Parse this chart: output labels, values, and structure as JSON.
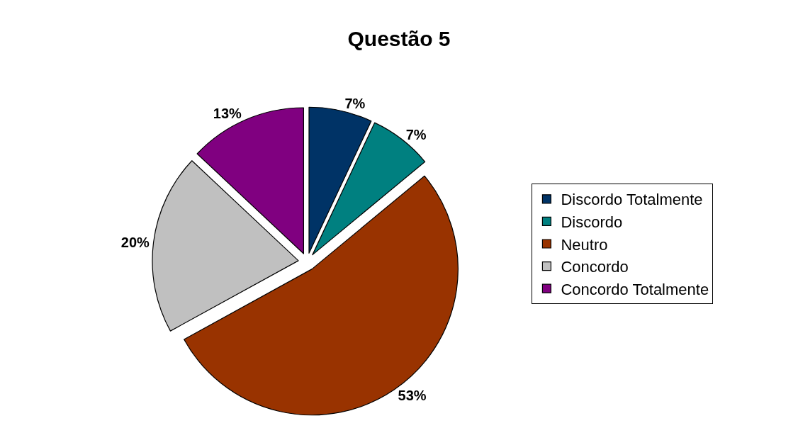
{
  "chart_data": {
    "type": "pie",
    "title": "Questão 5",
    "categories": [
      "Discordo Totalmente",
      "Discordo",
      "Neutro",
      "Concordo",
      "Concordo Totalmente"
    ],
    "values": [
      7,
      7,
      53,
      20,
      13
    ],
    "value_labels": [
      "7%",
      "7%",
      "53%",
      "20%",
      "13%"
    ],
    "colors": [
      "#003366",
      "#008080",
      "#993300",
      "#c0c0c0",
      "#800080"
    ],
    "legend": "right"
  }
}
